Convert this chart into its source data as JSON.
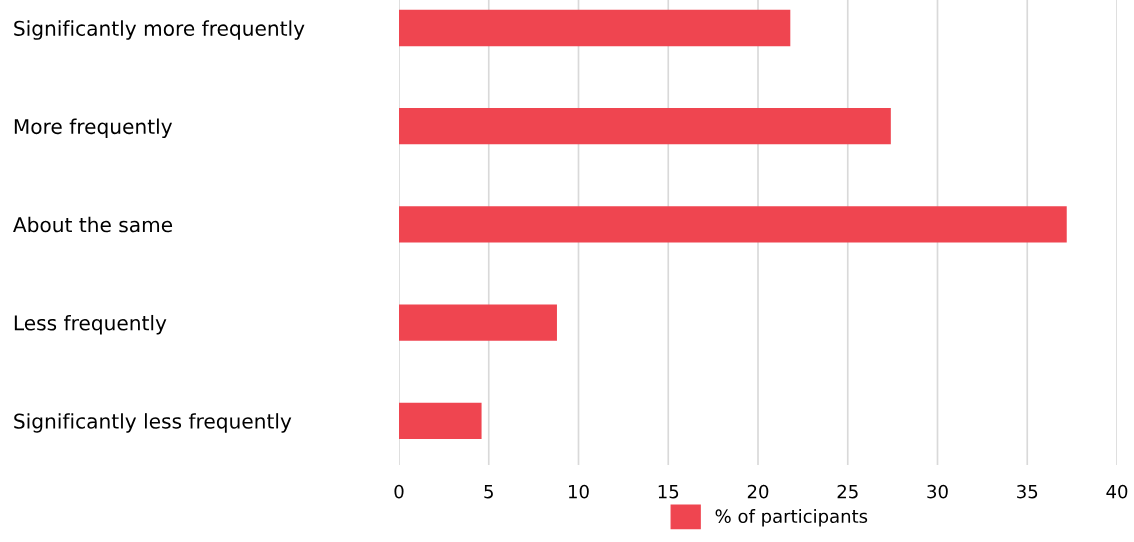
{
  "chart_data": {
    "type": "bar",
    "orientation": "horizontal",
    "categories": [
      "Significantly more frequently",
      "More frequently",
      "About the same",
      "Less frequently",
      "Significantly less frequently"
    ],
    "series": [
      {
        "name": "% of participants",
        "color": "#ef4550",
        "values": [
          21.8,
          27.4,
          37.2,
          8.8,
          4.6
        ]
      }
    ],
    "xlim": [
      0,
      40
    ],
    "xticks": [
      0,
      5,
      10,
      15,
      20,
      25,
      30,
      35,
      40
    ],
    "grid": "x",
    "legend": "bottom"
  }
}
